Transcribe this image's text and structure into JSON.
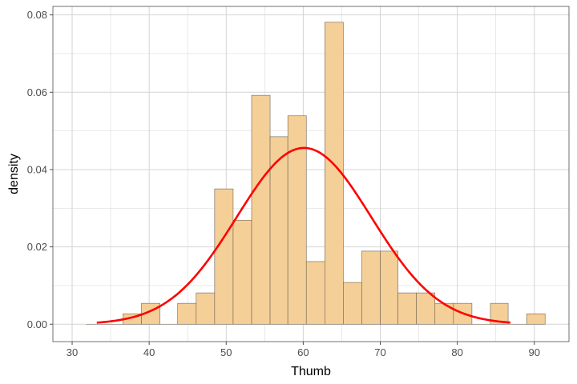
{
  "chart_data": {
    "type": "histogram",
    "xlabel": "Thumb",
    "ylabel": "density",
    "xlim": [
      27.5,
      94.5
    ],
    "ylim": [
      -0.0045,
      0.0822
    ],
    "x_ticks": [
      30,
      40,
      50,
      60,
      70,
      80,
      90
    ],
    "y_ticks": [
      0.0,
      0.02,
      0.04,
      0.06,
      0.08
    ],
    "x_tick_labels": [
      "30",
      "40",
      "50",
      "60",
      "70",
      "80",
      "90"
    ],
    "y_tick_labels": [
      "0.00",
      "0.02",
      "0.04",
      "0.06",
      "0.08"
    ],
    "grid": true,
    "bin_width": 2.381,
    "bins": [
      {
        "x_start": 31.8,
        "x_end": 34.2,
        "density": 0.0
      },
      {
        "x_start": 34.2,
        "x_end": 36.6,
        "density": 0.0
      },
      {
        "x_start": 36.6,
        "x_end": 39.0,
        "density": 0.0027
      },
      {
        "x_start": 39.0,
        "x_end": 41.4,
        "density": 0.0054
      },
      {
        "x_start": 41.4,
        "x_end": 43.7,
        "density": 0.0
      },
      {
        "x_start": 43.7,
        "x_end": 46.1,
        "density": 0.0054
      },
      {
        "x_start": 46.1,
        "x_end": 48.5,
        "density": 0.0081
      },
      {
        "x_start": 48.5,
        "x_end": 50.9,
        "density": 0.035
      },
      {
        "x_start": 50.9,
        "x_end": 53.3,
        "density": 0.0269
      },
      {
        "x_start": 53.3,
        "x_end": 55.7,
        "density": 0.0592
      },
      {
        "x_start": 55.7,
        "x_end": 58.0,
        "density": 0.0485
      },
      {
        "x_start": 58.0,
        "x_end": 60.4,
        "density": 0.0539
      },
      {
        "x_start": 60.4,
        "x_end": 62.8,
        "density": 0.0162
      },
      {
        "x_start": 62.8,
        "x_end": 65.2,
        "density": 0.0781
      },
      {
        "x_start": 65.2,
        "x_end": 67.6,
        "density": 0.0108
      },
      {
        "x_start": 67.6,
        "x_end": 70.0,
        "density": 0.0189
      },
      {
        "x_start": 70.0,
        "x_end": 72.3,
        "density": 0.0189
      },
      {
        "x_start": 72.3,
        "x_end": 74.7,
        "density": 0.0081
      },
      {
        "x_start": 74.7,
        "x_end": 77.1,
        "density": 0.0081
      },
      {
        "x_start": 77.1,
        "x_end": 79.5,
        "density": 0.0054
      },
      {
        "x_start": 79.5,
        "x_end": 81.9,
        "density": 0.0054
      },
      {
        "x_start": 81.9,
        "x_end": 84.3,
        "density": 0.0
      },
      {
        "x_start": 84.3,
        "x_end": 86.6,
        "density": 0.0054
      },
      {
        "x_start": 86.6,
        "x_end": 89.0,
        "density": 0.0
      },
      {
        "x_start": 89.0,
        "x_end": 91.4,
        "density": 0.0027
      }
    ],
    "curve": {
      "type": "normal-density",
      "mean": 60.1,
      "sd": 8.75,
      "x_start": 33.2,
      "x_end": 86.9,
      "color": "#ff0000"
    },
    "colors": {
      "bar_fill": "#f5cf98",
      "bar_stroke": "#6e6352",
      "grid": "#d4d4d4",
      "panel_border": "#4d4d4d"
    }
  }
}
